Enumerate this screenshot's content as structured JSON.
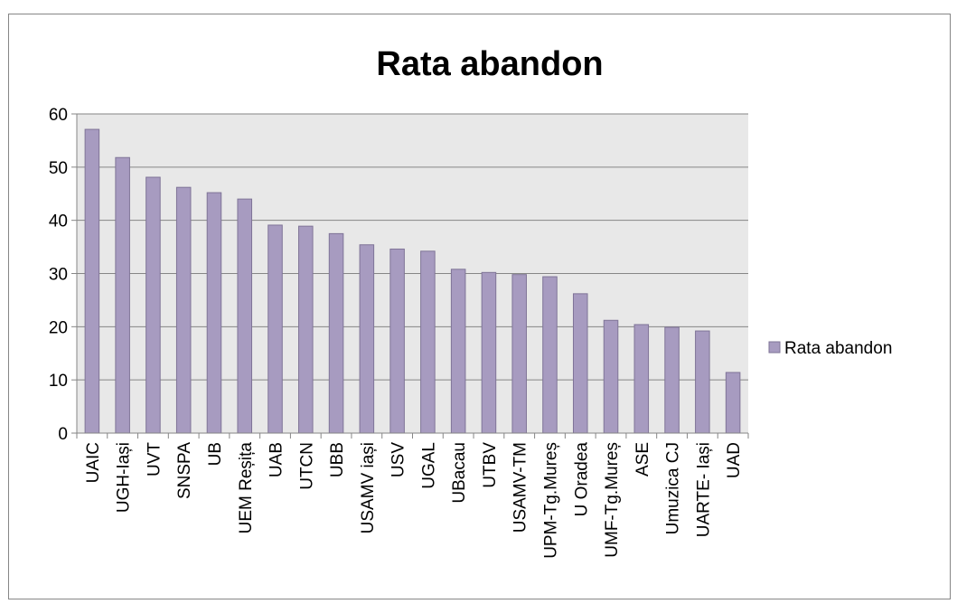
{
  "chart_data": {
    "type": "bar",
    "title": "Rata abandon",
    "xlabel": "",
    "ylabel": "",
    "ylim": [
      0,
      60
    ],
    "yticks": [
      0,
      10,
      20,
      30,
      40,
      50,
      60
    ],
    "grid": true,
    "legend": "right",
    "bar_color": "#a79bc0",
    "bar_border": "#7f7497",
    "plot_background": "#e8e8e8",
    "categories": [
      "UAIC",
      "UGH-Iași",
      "UVT",
      "SNSPA",
      "UB",
      "UEM Reșița",
      "UAB",
      "UTCN",
      "UBB",
      "USAMV iași",
      "USV",
      "UGAL",
      "UBacau",
      "UTBV",
      "USAMV-TM",
      "UPM-Tg.Mureș",
      "U Oradea",
      "UMF-Tg.Mureș",
      "ASE",
      "Umuzica CJ",
      "UARTE- Iași",
      "UAD"
    ],
    "series": [
      {
        "name": "Rata abandon",
        "values": [
          57.1,
          51.8,
          48.1,
          46.2,
          45.2,
          44.0,
          39.1,
          38.9,
          37.5,
          35.4,
          34.6,
          34.2,
          30.8,
          30.2,
          29.8,
          29.4,
          26.2,
          21.2,
          20.4,
          19.9,
          19.2,
          11.4
        ]
      }
    ]
  }
}
